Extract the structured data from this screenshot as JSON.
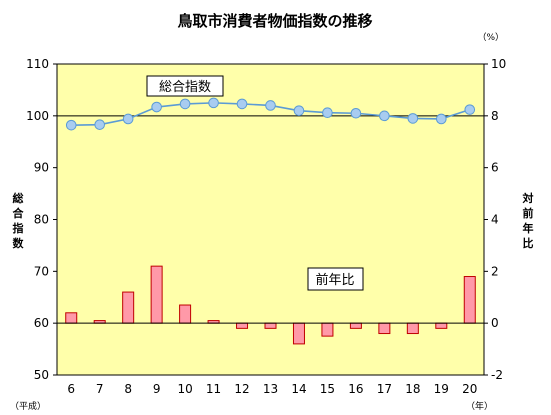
{
  "chart_data": {
    "type": "line+bar",
    "title": "鳥取市消費者物価指数の推移",
    "unit_right": "（%）",
    "x_unit_left": "（平成）",
    "x_unit_right": "（年）",
    "left_axis_label": [
      "総",
      "合",
      "指",
      "数"
    ],
    "right_axis_label": [
      "対",
      "前",
      "年",
      "比"
    ],
    "categories": [
      "6",
      "7",
      "8",
      "9",
      "10",
      "11",
      "12",
      "13",
      "14",
      "15",
      "16",
      "17",
      "18",
      "19",
      "20"
    ],
    "left_axis": {
      "ylim": [
        50,
        110
      ],
      "ticks": [
        50,
        60,
        70,
        80,
        90,
        100,
        110
      ]
    },
    "right_axis": {
      "ylim": [
        -2,
        10
      ],
      "ticks": [
        -2,
        0,
        2,
        4,
        6,
        8,
        10
      ]
    },
    "series": [
      {
        "name": "総合指数",
        "type": "line",
        "axis": "left",
        "values": [
          98.2,
          98.3,
          99.4,
          101.7,
          102.3,
          102.5,
          102.3,
          102.0,
          101.0,
          100.6,
          100.5,
          100.0,
          99.5,
          99.4,
          101.2
        ]
      },
      {
        "name": "前年比",
        "type": "bar",
        "axis": "right",
        "values": [
          0.4,
          0.1,
          1.2,
          2.2,
          0.7,
          0.1,
          -0.2,
          -0.2,
          -0.8,
          -0.5,
          -0.2,
          -0.4,
          -0.4,
          -0.2,
          1.8
        ]
      }
    ],
    "grid": false,
    "colors": {
      "plot_bg": "#FFFFAA",
      "line": "#5B9BD5",
      "marker": "#A8CCF0",
      "bar_fill": "#FF99A8",
      "bar_stroke": "#C00000"
    }
  }
}
